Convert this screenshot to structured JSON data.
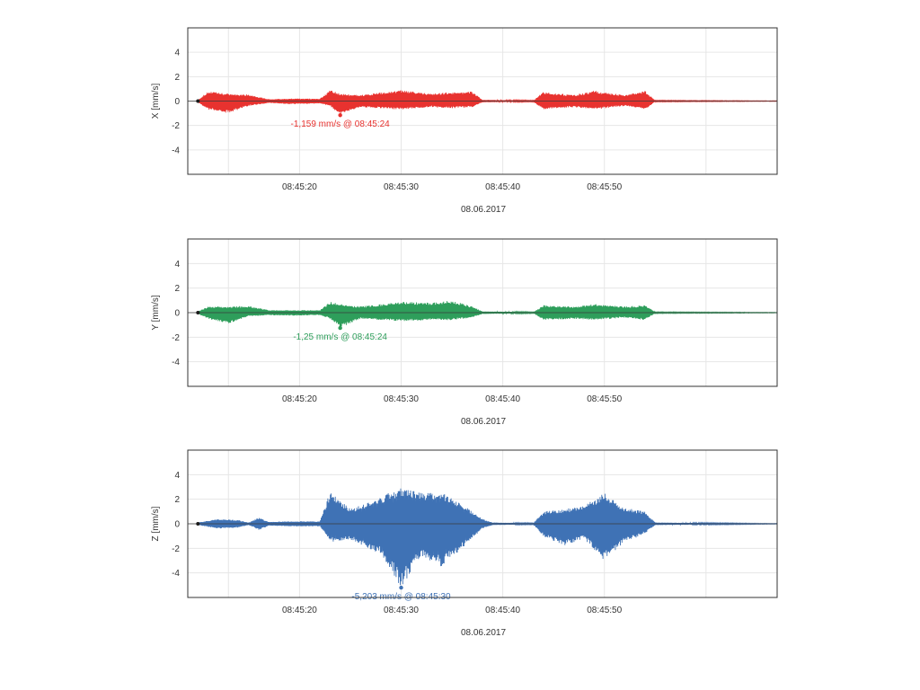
{
  "chart_data": [
    {
      "type": "line",
      "ylabel": "X [mm/s]",
      "xlabel": "08.06.2017",
      "color": "#e8322f",
      "x_range": [
        "08:45:09",
        "08:46:07"
      ],
      "ylim": [
        -6,
        6
      ],
      "y_ticks": [
        4,
        2,
        0,
        -2,
        -4
      ],
      "x_tick_labels": [
        "08:45:20",
        "08:45:30",
        "08:45:40",
        "08:45:50"
      ],
      "grid": true,
      "annotation": {
        "text": "-1,159 mm/s @ 08:45:24",
        "x": "08:45:24",
        "y": -1.159
      },
      "envelope": [
        [
          "08:45:10",
          0.1,
          -0.1
        ],
        [
          "08:45:11",
          0.8,
          -0.7
        ],
        [
          "08:45:13",
          0.6,
          -1.0
        ],
        [
          "08:45:15",
          0.55,
          -0.4
        ],
        [
          "08:45:17",
          0.15,
          -0.15
        ],
        [
          "08:45:19",
          0.2,
          -0.25
        ],
        [
          "08:45:22",
          0.2,
          -0.2
        ],
        [
          "08:45:23",
          0.9,
          -0.4
        ],
        [
          "08:45:24",
          0.6,
          -1.159
        ],
        [
          "08:45:26",
          0.5,
          -0.5
        ],
        [
          "08:45:30",
          0.9,
          -0.7
        ],
        [
          "08:45:33",
          0.6,
          -0.5
        ],
        [
          "08:45:35",
          0.75,
          -0.6
        ],
        [
          "08:45:37",
          0.8,
          -0.5
        ],
        [
          "08:45:38",
          0.1,
          -0.1
        ],
        [
          "08:45:43",
          0.05,
          -0.05
        ],
        [
          "08:45:44",
          0.75,
          -0.7
        ],
        [
          "08:45:47",
          0.5,
          -0.5
        ],
        [
          "08:45:49",
          0.85,
          -0.7
        ],
        [
          "08:45:52",
          0.5,
          -0.4
        ],
        [
          "08:45:54",
          0.85,
          -0.7
        ],
        [
          "08:45:55",
          0.05,
          -0.05
        ],
        [
          "08:46:07",
          0.02,
          -0.02
        ]
      ]
    },
    {
      "type": "line",
      "ylabel": "Y [mm/s]",
      "xlabel": "08.06.2017",
      "color": "#2e9e5b",
      "x_range": [
        "08:45:09",
        "08:46:07"
      ],
      "ylim": [
        -6,
        6
      ],
      "y_ticks": [
        4,
        2,
        0,
        -2,
        -4
      ],
      "x_tick_labels": [
        "08:45:20",
        "08:45:30",
        "08:45:40",
        "08:45:50"
      ],
      "grid": true,
      "annotation": {
        "text": "-1,25 mm/s @ 08:45:24",
        "x": "08:45:24",
        "y": -1.25
      },
      "envelope": [
        [
          "08:45:10",
          0.1,
          -0.1
        ],
        [
          "08:45:11",
          0.5,
          -0.5
        ],
        [
          "08:45:13",
          0.5,
          -0.9
        ],
        [
          "08:45:15",
          0.55,
          -0.3
        ],
        [
          "08:45:17",
          0.2,
          -0.2
        ],
        [
          "08:45:19",
          0.2,
          -0.25
        ],
        [
          "08:45:22",
          0.2,
          -0.2
        ],
        [
          "08:45:23",
          0.9,
          -0.5
        ],
        [
          "08:45:24",
          0.7,
          -1.25
        ],
        [
          "08:45:26",
          0.5,
          -0.5
        ],
        [
          "08:45:30",
          0.9,
          -0.7
        ],
        [
          "08:45:33",
          0.8,
          -0.6
        ],
        [
          "08:45:35",
          1.0,
          -0.6
        ],
        [
          "08:45:37",
          0.5,
          -0.4
        ],
        [
          "08:45:38",
          0.1,
          -0.1
        ],
        [
          "08:45:43",
          0.05,
          -0.05
        ],
        [
          "08:45:44",
          0.6,
          -0.6
        ],
        [
          "08:45:47",
          0.5,
          -0.5
        ],
        [
          "08:45:49",
          0.7,
          -0.6
        ],
        [
          "08:45:52",
          0.5,
          -0.4
        ],
        [
          "08:45:54",
          0.6,
          -0.6
        ],
        [
          "08:45:55",
          0.05,
          -0.05
        ],
        [
          "08:46:07",
          0.02,
          -0.02
        ]
      ]
    },
    {
      "type": "line",
      "ylabel": "Z [mm/s]",
      "xlabel": "08.06.2017",
      "color": "#3f72b5",
      "x_range": [
        "08:45:09",
        "08:46:07"
      ],
      "ylim": [
        -6,
        6
      ],
      "y_ticks": [
        4,
        2,
        0,
        -2,
        -4
      ],
      "x_tick_labels": [
        "08:45:20",
        "08:45:30",
        "08:45:40",
        "08:45:50"
      ],
      "grid": true,
      "annotation": {
        "text": "-5,203 mm/s @ 08:45:30",
        "x": "08:45:30",
        "y": -5.203
      },
      "envelope": [
        [
          "08:45:10",
          0.1,
          -0.1
        ],
        [
          "08:45:12",
          0.4,
          -0.4
        ],
        [
          "08:45:14",
          0.3,
          -0.3
        ],
        [
          "08:45:15",
          0.1,
          -0.1
        ],
        [
          "08:45:16",
          0.5,
          -0.5
        ],
        [
          "08:45:17",
          0.15,
          -0.15
        ],
        [
          "08:45:19",
          0.2,
          -0.2
        ],
        [
          "08:45:22",
          0.2,
          -0.2
        ],
        [
          "08:45:23",
          2.6,
          -1.5
        ],
        [
          "08:45:25",
          1.2,
          -1.3
        ],
        [
          "08:45:28",
          2.2,
          -2.5
        ],
        [
          "08:45:30",
          3.0,
          -5.203
        ],
        [
          "08:45:32",
          2.5,
          -2.6
        ],
        [
          "08:45:34",
          2.6,
          -3.5
        ],
        [
          "08:45:36",
          1.6,
          -2.0
        ],
        [
          "08:45:38",
          0.4,
          -0.4
        ],
        [
          "08:45:39",
          0.1,
          -0.1
        ],
        [
          "08:45:43",
          0.05,
          -0.05
        ],
        [
          "08:45:44",
          1.0,
          -1.0
        ],
        [
          "08:45:46",
          1.2,
          -1.8
        ],
        [
          "08:45:48",
          1.5,
          -1.2
        ],
        [
          "08:45:50",
          2.5,
          -3.0
        ],
        [
          "08:45:52",
          1.3,
          -1.5
        ],
        [
          "08:45:54",
          1.0,
          -0.8
        ],
        [
          "08:45:55",
          0.1,
          -0.1
        ],
        [
          "08:46:07",
          0.02,
          -0.02
        ]
      ]
    }
  ]
}
